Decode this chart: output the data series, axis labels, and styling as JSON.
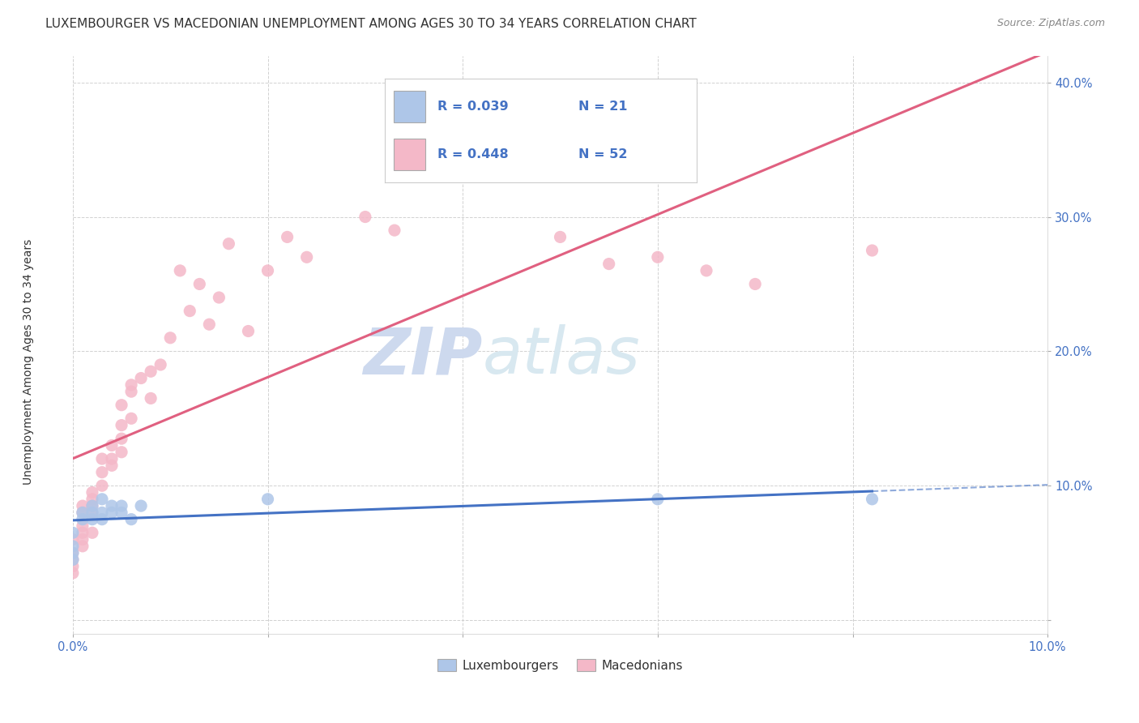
{
  "title": "LUXEMBOURGER VS MACEDONIAN UNEMPLOYMENT AMONG AGES 30 TO 34 YEARS CORRELATION CHART",
  "source": "Source: ZipAtlas.com",
  "ylabel": "Unemployment Among Ages 30 to 34 years",
  "xlim": [
    0.0,
    0.1
  ],
  "ylim": [
    -0.01,
    0.42
  ],
  "xticks": [
    0.0,
    0.02,
    0.04,
    0.06,
    0.08,
    0.1
  ],
  "xticklabels": [
    "0.0%",
    "",
    "",
    "",
    "",
    "10.0%"
  ],
  "yticks": [
    0.0,
    0.1,
    0.2,
    0.3,
    0.4
  ],
  "yticklabels": [
    "",
    "10.0%",
    "20.0%",
    "30.0%",
    "40.0%"
  ],
  "legend_r": [
    "R = 0.039",
    "R = 0.448"
  ],
  "legend_n": [
    "N = 21",
    "N = 52"
  ],
  "lux_color": "#aec6e8",
  "mac_color": "#f4b8c8",
  "lux_line_color": "#4472c4",
  "mac_line_color": "#e06080",
  "watermark_zip": "ZIP",
  "watermark_atlas": "atlas",
  "watermark_color": "#cdd9ee",
  "background_color": "#ffffff",
  "grid_color": "#cccccc",
  "lux_x": [
    0.0,
    0.0,
    0.0,
    0.0,
    0.001,
    0.001,
    0.002,
    0.002,
    0.002,
    0.003,
    0.003,
    0.003,
    0.004,
    0.004,
    0.005,
    0.005,
    0.006,
    0.007,
    0.02,
    0.06,
    0.082
  ],
  "lux_y": [
    0.065,
    0.055,
    0.045,
    0.05,
    0.075,
    0.08,
    0.08,
    0.075,
    0.085,
    0.09,
    0.08,
    0.075,
    0.085,
    0.08,
    0.08,
    0.085,
    0.075,
    0.085,
    0.09,
    0.09,
    0.09
  ],
  "mac_x": [
    0.0,
    0.0,
    0.0,
    0.0,
    0.0,
    0.001,
    0.001,
    0.001,
    0.001,
    0.001,
    0.001,
    0.002,
    0.002,
    0.002,
    0.002,
    0.002,
    0.003,
    0.003,
    0.003,
    0.004,
    0.004,
    0.004,
    0.005,
    0.005,
    0.005,
    0.005,
    0.006,
    0.006,
    0.006,
    0.007,
    0.008,
    0.008,
    0.009,
    0.01,
    0.011,
    0.012,
    0.013,
    0.014,
    0.015,
    0.016,
    0.018,
    0.02,
    0.022,
    0.024,
    0.03,
    0.033,
    0.05,
    0.055,
    0.06,
    0.065,
    0.07,
    0.082
  ],
  "mac_y": [
    0.06,
    0.05,
    0.045,
    0.04,
    0.035,
    0.065,
    0.07,
    0.06,
    0.055,
    0.08,
    0.085,
    0.09,
    0.08,
    0.065,
    0.085,
    0.095,
    0.1,
    0.11,
    0.12,
    0.13,
    0.12,
    0.115,
    0.135,
    0.125,
    0.145,
    0.16,
    0.15,
    0.17,
    0.175,
    0.18,
    0.165,
    0.185,
    0.19,
    0.21,
    0.26,
    0.23,
    0.25,
    0.22,
    0.24,
    0.28,
    0.215,
    0.26,
    0.285,
    0.27,
    0.3,
    0.29,
    0.285,
    0.265,
    0.27,
    0.26,
    0.25,
    0.275
  ],
  "title_fontsize": 11,
  "axis_label_fontsize": 10,
  "tick_fontsize": 10.5,
  "legend_fontsize": 11.5
}
